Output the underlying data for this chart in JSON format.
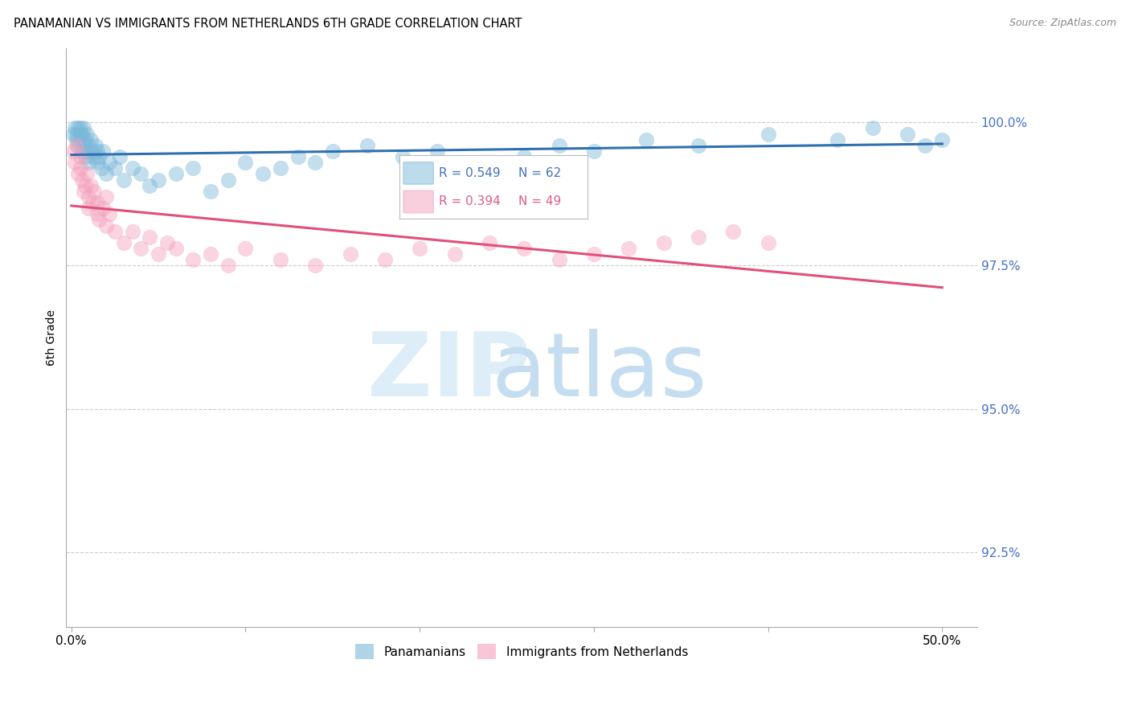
{
  "title": "PANAMANIAN VS IMMIGRANTS FROM NETHERLANDS 6TH GRADE CORRELATION CHART",
  "source": "Source: ZipAtlas.com",
  "ylabel_label": "6th Grade",
  "ylim": [
    91.2,
    101.3
  ],
  "xlim": [
    -0.3,
    52.0
  ],
  "yticks": [
    92.5,
    95.0,
    97.5,
    100.0
  ],
  "ytick_labels": [
    "92.5%",
    "95.0%",
    "97.5%",
    "100.0%"
  ],
  "xtick_positions": [
    0,
    10,
    20,
    30,
    40,
    50
  ],
  "xtick_labels": [
    "0.0%",
    "",
    "",
    "",
    "",
    "50.0%"
  ],
  "R_blue": 0.549,
  "N_blue": 62,
  "R_pink": 0.394,
  "N_pink": 49,
  "blue_color": "#7ab8d9",
  "pink_color": "#f4a0bc",
  "blue_line_color": "#3070b0",
  "pink_line_color": "#e0507a",
  "legend_R_blue_color": "#4472c4",
  "legend_R_pink_color": "#e05c8a",
  "grid_color": "#cccccc",
  "axis_color": "#aaaaaa",
  "blue_x": [
    0.1,
    0.2,
    0.3,
    0.3,
    0.4,
    0.4,
    0.5,
    0.5,
    0.5,
    0.6,
    0.6,
    0.7,
    0.7,
    0.8,
    0.8,
    0.9,
    0.9,
    1.0,
    1.0,
    1.1,
    1.2,
    1.3,
    1.4,
    1.5,
    1.5,
    1.6,
    1.7,
    1.8,
    2.0,
    2.2,
    2.5,
    2.8,
    3.0,
    3.5,
    4.0,
    4.5,
    5.0,
    6.0,
    7.0,
    8.0,
    9.0,
    10.0,
    11.0,
    12.0,
    13.0,
    14.0,
    15.0,
    17.0,
    19.0,
    21.0,
    23.0,
    26.0,
    28.0,
    30.0,
    33.0,
    36.0,
    40.0,
    44.0,
    46.0,
    48.0,
    49.0,
    50.0
  ],
  "blue_y": [
    99.8,
    99.9,
    99.7,
    99.8,
    99.9,
    99.6,
    99.8,
    99.9,
    99.7,
    99.5,
    99.8,
    99.6,
    99.9,
    99.7,
    99.4,
    99.5,
    99.8,
    99.3,
    99.6,
    99.7,
    99.5,
    99.4,
    99.6,
    99.3,
    99.5,
    99.4,
    99.2,
    99.5,
    99.1,
    99.3,
    99.2,
    99.4,
    99.0,
    99.2,
    99.1,
    98.9,
    99.0,
    99.1,
    99.2,
    98.8,
    99.0,
    99.3,
    99.1,
    99.2,
    99.4,
    99.3,
    99.5,
    99.6,
    99.4,
    99.5,
    99.3,
    99.4,
    99.6,
    99.5,
    99.7,
    99.6,
    99.8,
    99.7,
    99.9,
    99.8,
    99.6,
    99.7
  ],
  "pink_x": [
    0.1,
    0.2,
    0.3,
    0.4,
    0.5,
    0.5,
    0.6,
    0.7,
    0.8,
    0.9,
    1.0,
    1.0,
    1.1,
    1.2,
    1.3,
    1.5,
    1.5,
    1.6,
    1.8,
    2.0,
    2.0,
    2.2,
    2.5,
    3.0,
    3.5,
    4.0,
    4.5,
    5.0,
    5.5,
    6.0,
    7.0,
    8.0,
    9.0,
    10.0,
    12.0,
    14.0,
    16.0,
    18.0,
    20.0,
    22.0,
    24.0,
    26.0,
    28.0,
    30.0,
    32.0,
    34.0,
    36.0,
    38.0,
    40.0
  ],
  "pink_y": [
    99.5,
    99.3,
    99.6,
    99.1,
    99.4,
    99.2,
    99.0,
    98.8,
    98.9,
    99.1,
    98.7,
    98.5,
    98.9,
    98.6,
    98.8,
    98.4,
    98.6,
    98.3,
    98.5,
    98.2,
    98.7,
    98.4,
    98.1,
    97.9,
    98.1,
    97.8,
    98.0,
    97.7,
    97.9,
    97.8,
    97.6,
    97.7,
    97.5,
    97.8,
    97.6,
    97.5,
    97.7,
    97.6,
    97.8,
    97.7,
    97.9,
    97.8,
    97.6,
    97.7,
    97.8,
    97.9,
    98.0,
    98.1,
    97.9
  ]
}
